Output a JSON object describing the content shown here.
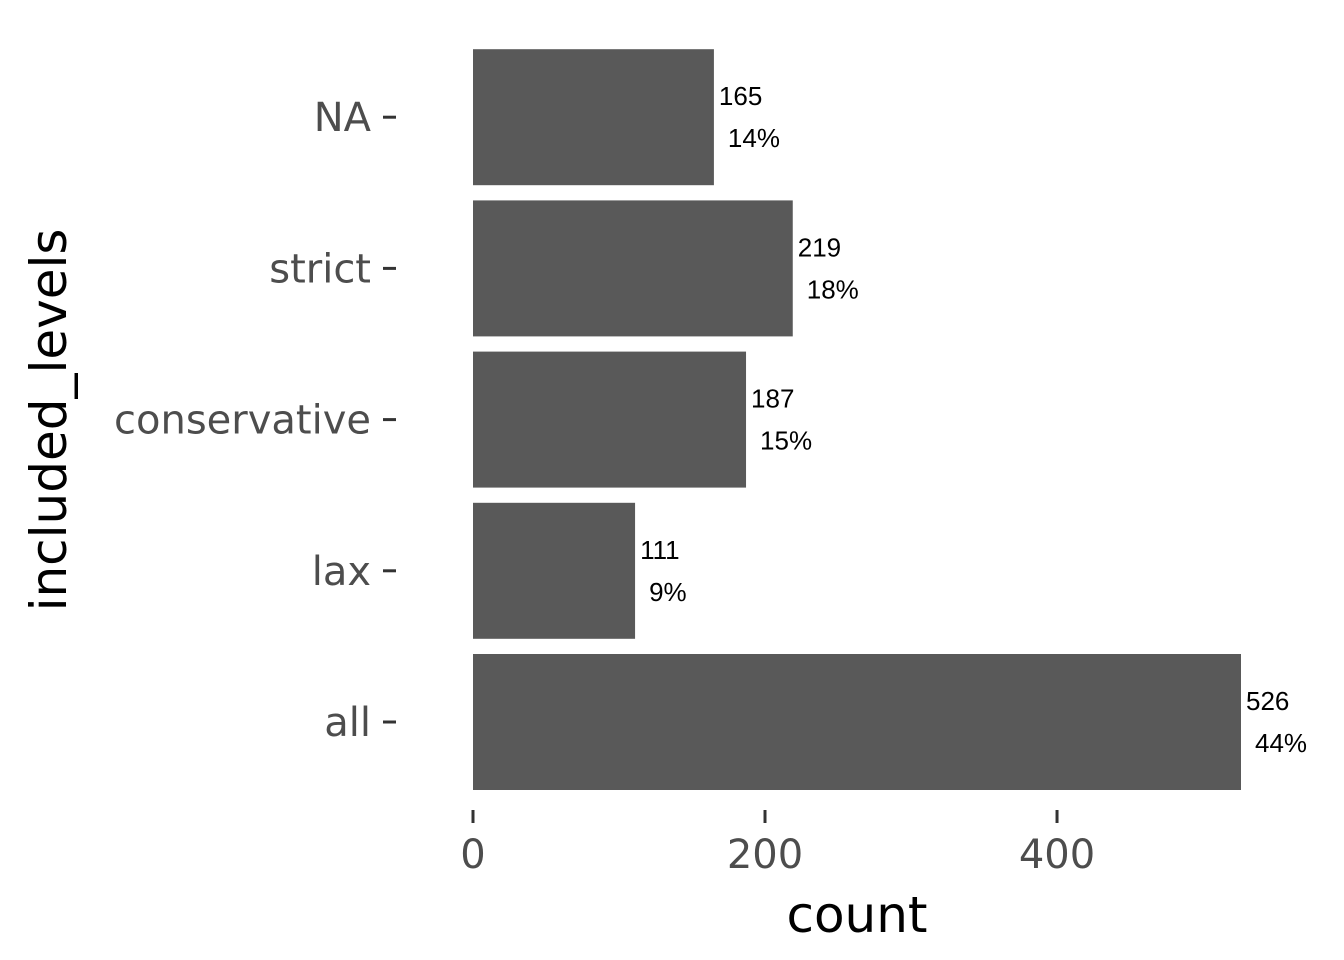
{
  "chart_data": {
    "type": "bar",
    "orientation": "horizontal",
    "categories": [
      "all",
      "lax",
      "conservative",
      "strict",
      "NA"
    ],
    "values": [
      526,
      111,
      187,
      219,
      165
    ],
    "percent_labels": [
      "44%",
      "9%",
      "15%",
      "18%",
      "14%"
    ],
    "xlabel": "count",
    "ylabel": "included_levels",
    "xlim": [
      0,
      526
    ],
    "x_ticks": [
      0,
      200,
      400
    ],
    "x_tick_labels": [
      "0",
      "200",
      "400"
    ],
    "grid": false,
    "legend": "none",
    "bar_color": "#595959",
    "background": "#ffffff"
  }
}
